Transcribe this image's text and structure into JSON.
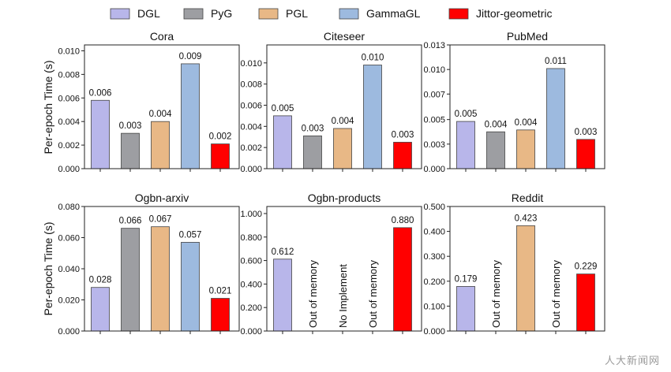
{
  "legend": [
    {
      "name": "DGL",
      "color": "#b8b6ea"
    },
    {
      "name": "PyG",
      "color": "#9d9ea2"
    },
    {
      "name": "PGL",
      "color": "#e8b886"
    },
    {
      "name": "GammaGL",
      "color": "#9dbadf"
    },
    {
      "name": "Jittor-geometric",
      "color": "#ff0000"
    }
  ],
  "ylabel": "Per-epoch Time (s)",
  "watermark": "人大新闻网",
  "chart_data": [
    {
      "type": "bar",
      "title": "Cora",
      "categories": [
        "DGL",
        "PyG",
        "PGL",
        "GammaGL",
        "Jittor-geometric"
      ],
      "values": [
        0.0058,
        0.003,
        0.004,
        0.0089,
        0.0021
      ],
      "labels": [
        "0.006",
        "0.003",
        "0.004",
        "0.009",
        "0.002"
      ],
      "ylim": [
        0,
        0.0105
      ],
      "yticks": [
        "0.000",
        "0.002",
        "0.004",
        "0.006",
        "0.008",
        "0.010"
      ]
    },
    {
      "type": "bar",
      "title": "Citeseer",
      "categories": [
        "DGL",
        "PyG",
        "PGL",
        "GammaGL",
        "Jittor-geometric"
      ],
      "values": [
        0.005,
        0.0031,
        0.0038,
        0.0098,
        0.0025
      ],
      "labels": [
        "0.005",
        "0.003",
        "0.004",
        "0.010",
        "0.003"
      ],
      "ylim": [
        0,
        0.0117
      ],
      "yticks": [
        "0.000",
        "0.002",
        "0.004",
        "0.006",
        "0.008",
        "0.010"
      ]
    },
    {
      "type": "bar",
      "title": "PubMed",
      "categories": [
        "DGL",
        "PyG",
        "PGL",
        "GammaGL",
        "Jittor-geometric"
      ],
      "values": [
        0.005,
        0.0039,
        0.0041,
        0.0106,
        0.0031
      ],
      "labels": [
        "0.005",
        "0.004",
        "0.004",
        "0.011",
        "0.003"
      ],
      "ylim": [
        0,
        0.0131
      ],
      "yticks": [
        "0.000",
        "0.003",
        "0.005",
        "0.007",
        "0.010",
        "0.013"
      ],
      "ytick_values": [
        0,
        0.0026,
        0.0052,
        0.0079,
        0.0105,
        0.0131
      ]
    },
    {
      "type": "bar",
      "title": "Ogbn-arxiv",
      "categories": [
        "DGL",
        "PyG",
        "PGL",
        "GammaGL",
        "Jittor-geometric"
      ],
      "values": [
        0.028,
        0.066,
        0.067,
        0.057,
        0.021
      ],
      "labels": [
        "0.028",
        "0.066",
        "0.067",
        "0.057",
        "0.021"
      ],
      "ylim": [
        0,
        0.08
      ],
      "yticks": [
        "0.000",
        "0.020",
        "0.040",
        "0.060",
        "0.080"
      ]
    },
    {
      "type": "bar",
      "title": "Ogbn-products",
      "categories": [
        "DGL",
        "PyG",
        "PGL",
        "GammaGL",
        "Jittor-geometric"
      ],
      "values": [
        0.612,
        null,
        null,
        null,
        0.88
      ],
      "labels": [
        "0.612",
        "Out of memory",
        "No Implement",
        "Out of memory",
        "0.880"
      ],
      "ylim": [
        0,
        1.06
      ],
      "yticks": [
        "0.000",
        "0.200",
        "0.400",
        "0.600",
        "0.800",
        "1.000"
      ]
    },
    {
      "type": "bar",
      "title": "Reddit",
      "categories": [
        "DGL",
        "PyG",
        "PGL",
        "GammaGL",
        "Jittor-geometric"
      ],
      "values": [
        0.179,
        null,
        0.423,
        null,
        0.229
      ],
      "labels": [
        "0.179",
        "Out of memory",
        "0.423",
        "Out of memory",
        "0.229"
      ],
      "ylim": [
        0,
        0.5
      ],
      "yticks": [
        "0.000",
        "0.100",
        "0.200",
        "0.300",
        "0.400",
        "0.500"
      ]
    }
  ]
}
